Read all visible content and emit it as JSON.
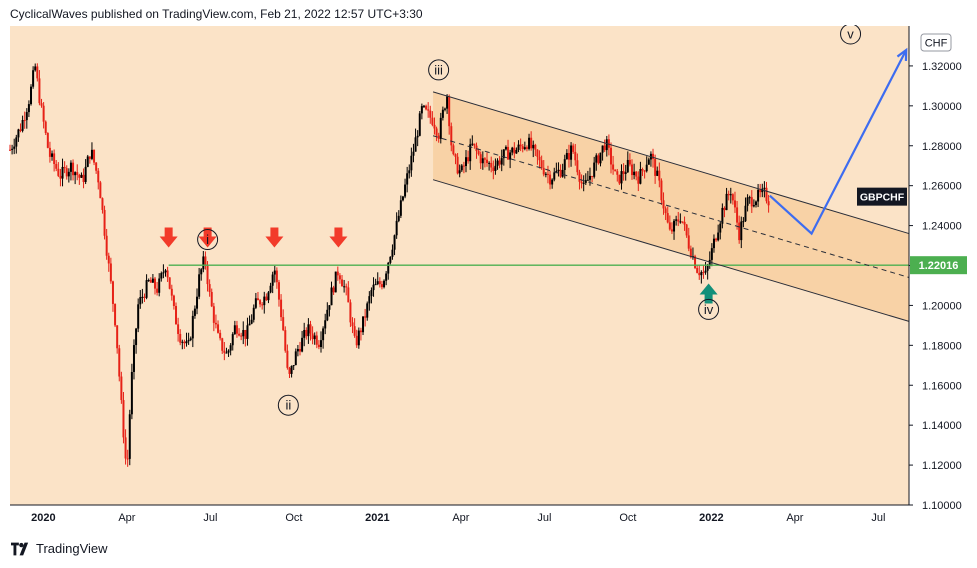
{
  "header": {
    "attribution": "CyclicalWaves published on TradingView.com, Feb 21, 2022 12:57 UTC+3:30"
  },
  "footer": {
    "brand": "TradingView"
  },
  "chart_data": {
    "type": "candlestick",
    "symbol": "GBPCHF",
    "currency": "CHF",
    "ylim": [
      1.1,
      1.34
    ],
    "y_ticks": [
      "1.10000",
      "1.12000",
      "1.14000",
      "1.16000",
      "1.18000",
      "1.20000",
      "1.22000",
      "1.24000",
      "1.26000",
      "1.28000",
      "1.30000",
      "1.32000"
    ],
    "x_labels": [
      {
        "label": "2020",
        "t": 0.0,
        "bold": true
      },
      {
        "label": "Apr",
        "t": 3.0
      },
      {
        "label": "Jul",
        "t": 6.0
      },
      {
        "label": "Oct",
        "t": 9.0
      },
      {
        "label": "2021",
        "t": 12.0,
        "bold": true
      },
      {
        "label": "Apr",
        "t": 15.0
      },
      {
        "label": "Jul",
        "t": 18.0
      },
      {
        "label": "Oct",
        "t": 21.0
      },
      {
        "label": "2022",
        "t": 24.0,
        "bold": true
      },
      {
        "label": "Apr",
        "t": 27.0
      },
      {
        "label": "Jul",
        "t": 30.0
      }
    ],
    "xlim": [
      -1.2,
      31.1
    ],
    "price_path": [
      [
        -1.2,
        1.278
      ],
      [
        -0.8,
        1.29
      ],
      [
        -0.5,
        1.304
      ],
      [
        -0.3,
        1.32
      ],
      [
        -0.1,
        1.3
      ],
      [
        0.2,
        1.276
      ],
      [
        0.6,
        1.265
      ],
      [
        1.0,
        1.27
      ],
      [
        1.4,
        1.262
      ],
      [
        1.7,
        1.278
      ],
      [
        2.0,
        1.262
      ],
      [
        2.3,
        1.225
      ],
      [
        2.6,
        1.19
      ],
      [
        2.8,
        1.15
      ],
      [
        3.0,
        1.115
      ],
      [
        3.15,
        1.16
      ],
      [
        3.4,
        1.2
      ],
      [
        3.8,
        1.212
      ],
      [
        4.1,
        1.208
      ],
      [
        4.4,
        1.221
      ],
      [
        4.7,
        1.196
      ],
      [
        4.9,
        1.185
      ],
      [
        5.2,
        1.178
      ],
      [
        5.6,
        1.214
      ],
      [
        5.8,
        1.224
      ],
      [
        6.0,
        1.202
      ],
      [
        6.3,
        1.182
      ],
      [
        6.6,
        1.175
      ],
      [
        6.9,
        1.19
      ],
      [
        7.3,
        1.185
      ],
      [
        7.6,
        1.2
      ],
      [
        8.0,
        1.205
      ],
      [
        8.3,
        1.219
      ],
      [
        8.6,
        1.19
      ],
      [
        8.8,
        1.162
      ],
      [
        9.1,
        1.177
      ],
      [
        9.5,
        1.188
      ],
      [
        9.9,
        1.182
      ],
      [
        10.3,
        1.204
      ],
      [
        10.6,
        1.218
      ],
      [
        10.9,
        1.205
      ],
      [
        11.2,
        1.18
      ],
      [
        11.5,
        1.192
      ],
      [
        11.8,
        1.208
      ],
      [
        12.2,
        1.212
      ],
      [
        12.6,
        1.234
      ],
      [
        13.0,
        1.26
      ],
      [
        13.3,
        1.278
      ],
      [
        13.6,
        1.298
      ],
      [
        14.0,
        1.293
      ],
      [
        14.2,
        1.286
      ],
      [
        14.5,
        1.306
      ],
      [
        14.7,
        1.274
      ],
      [
        15.0,
        1.266
      ],
      [
        15.4,
        1.28
      ],
      [
        15.8,
        1.272
      ],
      [
        16.2,
        1.27
      ],
      [
        16.6,
        1.276
      ],
      [
        17.0,
        1.278
      ],
      [
        17.4,
        1.282
      ],
      [
        17.8,
        1.272
      ],
      [
        18.2,
        1.264
      ],
      [
        18.6,
        1.268
      ],
      [
        19.0,
        1.279
      ],
      [
        19.4,
        1.258
      ],
      [
        19.8,
        1.27
      ],
      [
        20.2,
        1.282
      ],
      [
        20.6,
        1.262
      ],
      [
        21.0,
        1.27
      ],
      [
        21.4,
        1.264
      ],
      [
        21.8,
        1.276
      ],
      [
        22.1,
        1.262
      ],
      [
        22.5,
        1.236
      ],
      [
        22.9,
        1.245
      ],
      [
        23.2,
        1.23
      ],
      [
        23.5,
        1.218
      ],
      [
        23.8,
        1.215
      ],
      [
        24.1,
        1.232
      ],
      [
        24.4,
        1.248
      ],
      [
        24.7,
        1.258
      ],
      [
        25.0,
        1.236
      ],
      [
        25.3,
        1.252
      ],
      [
        25.6,
        1.254
      ],
      [
        25.9,
        1.256
      ],
      [
        26.1,
        1.252
      ]
    ],
    "lines": [
      {
        "name": "support",
        "value": 1.22016,
        "label": "1.22016",
        "color": "#4caf50"
      },
      {
        "name": "channel-upper",
        "from": [
          14.0,
          1.307
        ],
        "to": [
          31.1,
          1.236
        ],
        "color": "#2a2e39"
      },
      {
        "name": "channel-mid",
        "from": [
          14.0,
          1.285
        ],
        "to": [
          31.1,
          1.214
        ],
        "color": "#2a2e39",
        "dashed": true
      },
      {
        "name": "channel-lower",
        "from": [
          14.0,
          1.263
        ],
        "to": [
          31.1,
          1.192
        ],
        "color": "#2a2e39"
      }
    ],
    "projection": {
      "color": "#3d6cf0",
      "points": [
        [
          26.1,
          1.255
        ],
        [
          27.6,
          1.236
        ],
        [
          31.0,
          1.328
        ]
      ]
    },
    "wave_labels": [
      {
        "label": "i",
        "t": 5.9,
        "y": 1.233
      },
      {
        "label": "ii",
        "t": 8.8,
        "y": 1.15
      },
      {
        "label": "iii",
        "t": 14.2,
        "y": 1.318
      },
      {
        "label": "iv",
        "t": 23.9,
        "y": 1.198
      },
      {
        "label": "v",
        "t": 29.0,
        "y": 1.336
      }
    ],
    "arrows_down": [
      {
        "t": 4.5,
        "y": 1.229
      },
      {
        "t": 5.9,
        "y": 1.229
      },
      {
        "t": 8.3,
        "y": 1.229
      },
      {
        "t": 10.6,
        "y": 1.229
      }
    ],
    "arrow_up": {
      "t": 23.9,
      "y": 1.207
    },
    "symbol_tag": {
      "label": "GBPCHF",
      "y": 1.2545
    },
    "colors": {
      "background": "#fbe3c7",
      "channel_fill": "#f7cc9b",
      "up_candle": "#000000",
      "down_candle": "#e62117",
      "arrow_down": "#f23b2a",
      "arrow_up": "#13907a"
    }
  }
}
